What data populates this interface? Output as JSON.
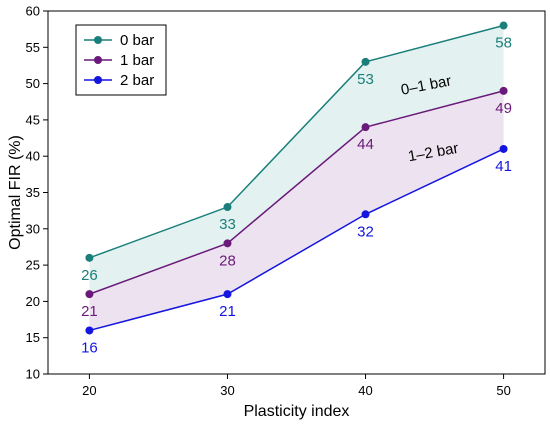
{
  "chart_data": {
    "type": "line",
    "xlabel": "Plasticity index",
    "ylabel": "Optimal FIR (%)",
    "x": [
      20,
      30,
      40,
      50
    ],
    "xlim": [
      17,
      53
    ],
    "ylim": [
      10,
      60
    ],
    "xticks": [
      20,
      30,
      40,
      50
    ],
    "yticks": [
      10,
      15,
      20,
      25,
      30,
      35,
      40,
      45,
      50,
      55,
      60
    ],
    "grid": false,
    "legend_position": "top-left",
    "series": [
      {
        "name": "0 bar",
        "values": [
          26,
          33,
          53,
          58
        ],
        "color": "#1a7f7a"
      },
      {
        "name": "1 bar",
        "values": [
          21,
          28,
          44,
          49
        ],
        "color": "#6a1a7a"
      },
      {
        "name": "2 bar",
        "values": [
          16,
          21,
          32,
          41
        ],
        "color": "#1515e0"
      }
    ],
    "bands": [
      {
        "label": "0–1 bar",
        "between": [
          0,
          1
        ],
        "color": "#e3f2f0"
      },
      {
        "label": "1–2 bar",
        "between": [
          1,
          2
        ],
        "color": "#ede3f0"
      }
    ]
  }
}
